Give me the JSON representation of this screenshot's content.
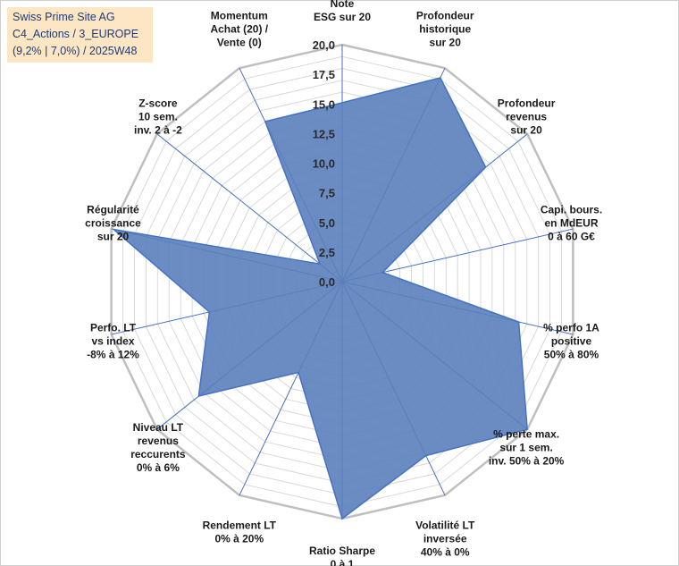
{
  "title_box": {
    "line1": "Swiss Prime Site AG",
    "line2": "C4_Actions / 3_EUROPE",
    "line3": "(9,2% | 7,0%) / 2025W48"
  },
  "chart_data": {
    "type": "radar",
    "rmax": 20,
    "tick_values": [
      0,
      2.5,
      5,
      7.5,
      10,
      12.5,
      15,
      17.5,
      20
    ],
    "tick_labels": [
      "0,0",
      "2,5",
      "5,0",
      "7,5",
      "10,0",
      "12,5",
      "15,0",
      "17,5",
      "20,0"
    ],
    "axes": [
      {
        "label": [
          "Note",
          "ESG sur 20"
        ]
      },
      {
        "label": [
          "Profondeur",
          "historique",
          "sur 20"
        ]
      },
      {
        "label": [
          "Profondeur",
          "revenus",
          "sur 20"
        ]
      },
      {
        "label": [
          "Capi. bours.",
          "en MdEUR",
          "0 à 60 G€"
        ]
      },
      {
        "label": [
          "% perfo 1A",
          "positive",
          "50% à 80%"
        ]
      },
      {
        "label": [
          "% perte max.",
          "sur 1 sem.",
          "inv. 50% à 20%"
        ]
      },
      {
        "label": [
          "Volatilité LT",
          "inversée",
          "40% à 0%"
        ]
      },
      {
        "label": [
          "Ratio Sharpe",
          "0 à 1"
        ]
      },
      {
        "label": [
          "Rendement LT",
          "0% à 20%"
        ]
      },
      {
        "label": [
          "Niveau LT",
          "revenus",
          "reccurents",
          "0% à 6%"
        ]
      },
      {
        "label": [
          "Perfo. LT",
          "vs index",
          "-8% à 12%"
        ]
      },
      {
        "label": [
          "Régularité",
          "croissance",
          "sur 20"
        ]
      },
      {
        "label": [
          "Z-score",
          "10 sem.",
          "inv. 2 à -2"
        ]
      },
      {
        "label": [
          "Momentum",
          "Achat (20) /",
          "Vente (0)"
        ]
      }
    ],
    "series": [
      {
        "values": [
          15.1,
          19.1,
          15.5,
          3.5,
          15.3,
          20.0,
          16.3,
          20.0,
          8.5,
          15.5,
          11.5,
          19.8,
          2.4,
          15.0
        ]
      }
    ],
    "colors": {
      "fill": "#5b80bb",
      "stroke": "#4472c4",
      "grid": "#d9d9d9",
      "outer": "#bfbfbf"
    }
  }
}
